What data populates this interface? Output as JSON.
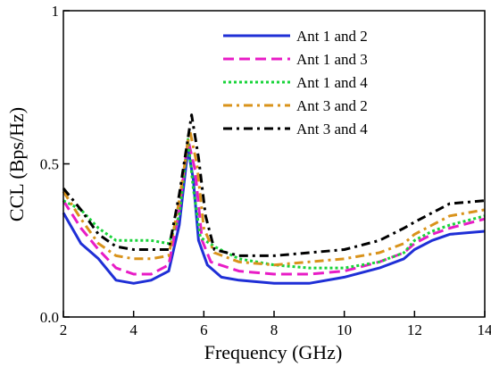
{
  "chart_data": {
    "type": "line",
    "title": "",
    "xlabel": "Frequency (GHz)",
    "ylabel": "CCL (Bps/Hz)",
    "xlim": [
      2,
      14
    ],
    "ylim": [
      0,
      1
    ],
    "xticks": [
      2,
      4,
      6,
      8,
      10,
      12,
      14
    ],
    "xtick_labels": [
      "2",
      "4",
      "6",
      "8",
      "10",
      "12",
      "14"
    ],
    "yticks": [
      0,
      0.5,
      1
    ],
    "ytick_labels": [
      "0.0",
      "0.5",
      "1"
    ],
    "grid": false,
    "legend_position": "top-right",
    "series": [
      {
        "name": "Ant 1 and 2",
        "color": "#1f2fd6",
        "dash": "solid",
        "points": [
          [
            2,
            0.34
          ],
          [
            2.5,
            0.24
          ],
          [
            3,
            0.19
          ],
          [
            3.5,
            0.12
          ],
          [
            4,
            0.11
          ],
          [
            4.5,
            0.12
          ],
          [
            5,
            0.15
          ],
          [
            5.3,
            0.3
          ],
          [
            5.55,
            0.55
          ],
          [
            5.7,
            0.45
          ],
          [
            5.85,
            0.25
          ],
          [
            6.1,
            0.17
          ],
          [
            6.5,
            0.13
          ],
          [
            7,
            0.12
          ],
          [
            8,
            0.11
          ],
          [
            9,
            0.11
          ],
          [
            10,
            0.13
          ],
          [
            11,
            0.16
          ],
          [
            11.7,
            0.19
          ],
          [
            12,
            0.22
          ],
          [
            12.5,
            0.25
          ],
          [
            13,
            0.27
          ],
          [
            14,
            0.28
          ]
        ]
      },
      {
        "name": "Ant 1 and 3",
        "color": "#e81cc6",
        "dash": "dash",
        "points": [
          [
            2,
            0.38
          ],
          [
            2.5,
            0.29
          ],
          [
            3,
            0.22
          ],
          [
            3.5,
            0.16
          ],
          [
            4,
            0.14
          ],
          [
            4.5,
            0.14
          ],
          [
            5,
            0.17
          ],
          [
            5.3,
            0.35
          ],
          [
            5.55,
            0.58
          ],
          [
            5.75,
            0.48
          ],
          [
            5.95,
            0.25
          ],
          [
            6.2,
            0.18
          ],
          [
            7,
            0.15
          ],
          [
            8,
            0.14
          ],
          [
            9,
            0.14
          ],
          [
            10,
            0.15
          ],
          [
            11,
            0.18
          ],
          [
            11.7,
            0.21
          ],
          [
            12,
            0.24
          ],
          [
            12.5,
            0.27
          ],
          [
            13,
            0.29
          ],
          [
            14,
            0.32
          ]
        ]
      },
      {
        "name": "Ant 1 and 4",
        "color": "#19d43a",
        "dash": "dot",
        "points": [
          [
            2,
            0.38
          ],
          [
            2.5,
            0.35
          ],
          [
            3,
            0.29
          ],
          [
            3.5,
            0.25
          ],
          [
            4,
            0.25
          ],
          [
            4.5,
            0.25
          ],
          [
            5,
            0.24
          ],
          [
            5.3,
            0.33
          ],
          [
            5.55,
            0.58
          ],
          [
            5.7,
            0.42
          ],
          [
            5.9,
            0.26
          ],
          [
            6.3,
            0.23
          ],
          [
            7,
            0.19
          ],
          [
            8,
            0.17
          ],
          [
            9,
            0.16
          ],
          [
            10,
            0.16
          ],
          [
            11,
            0.18
          ],
          [
            11.7,
            0.21
          ],
          [
            12,
            0.25
          ],
          [
            12.5,
            0.28
          ],
          [
            13,
            0.3
          ],
          [
            14,
            0.33
          ]
        ]
      },
      {
        "name": "Ant 3 and 2",
        "color": "#d9931b",
        "dash": "dashdot",
        "points": [
          [
            2,
            0.41
          ],
          [
            2.5,
            0.32
          ],
          [
            3,
            0.24
          ],
          [
            3.5,
            0.2
          ],
          [
            4,
            0.19
          ],
          [
            4.5,
            0.19
          ],
          [
            5,
            0.2
          ],
          [
            5.3,
            0.38
          ],
          [
            5.6,
            0.61
          ],
          [
            5.8,
            0.5
          ],
          [
            6,
            0.29
          ],
          [
            6.3,
            0.21
          ],
          [
            7,
            0.18
          ],
          [
            8,
            0.17
          ],
          [
            9,
            0.18
          ],
          [
            10,
            0.19
          ],
          [
            11,
            0.21
          ],
          [
            11.7,
            0.24
          ],
          [
            12,
            0.27
          ],
          [
            12.5,
            0.3
          ],
          [
            13,
            0.33
          ],
          [
            14,
            0.35
          ]
        ]
      },
      {
        "name": "Ant 3 and 4",
        "color": "#000000",
        "dash": "dashdot",
        "points": [
          [
            2,
            0.42
          ],
          [
            2.5,
            0.35
          ],
          [
            3,
            0.27
          ],
          [
            3.5,
            0.23
          ],
          [
            4,
            0.22
          ],
          [
            4.5,
            0.22
          ],
          [
            5,
            0.22
          ],
          [
            5.3,
            0.4
          ],
          [
            5.65,
            0.66
          ],
          [
            5.85,
            0.52
          ],
          [
            6.05,
            0.33
          ],
          [
            6.3,
            0.22
          ],
          [
            7,
            0.2
          ],
          [
            8,
            0.2
          ],
          [
            9,
            0.21
          ],
          [
            10,
            0.22
          ],
          [
            11,
            0.25
          ],
          [
            11.7,
            0.29
          ],
          [
            12,
            0.31
          ],
          [
            12.5,
            0.34
          ],
          [
            13,
            0.37
          ],
          [
            14,
            0.38
          ]
        ]
      }
    ]
  }
}
